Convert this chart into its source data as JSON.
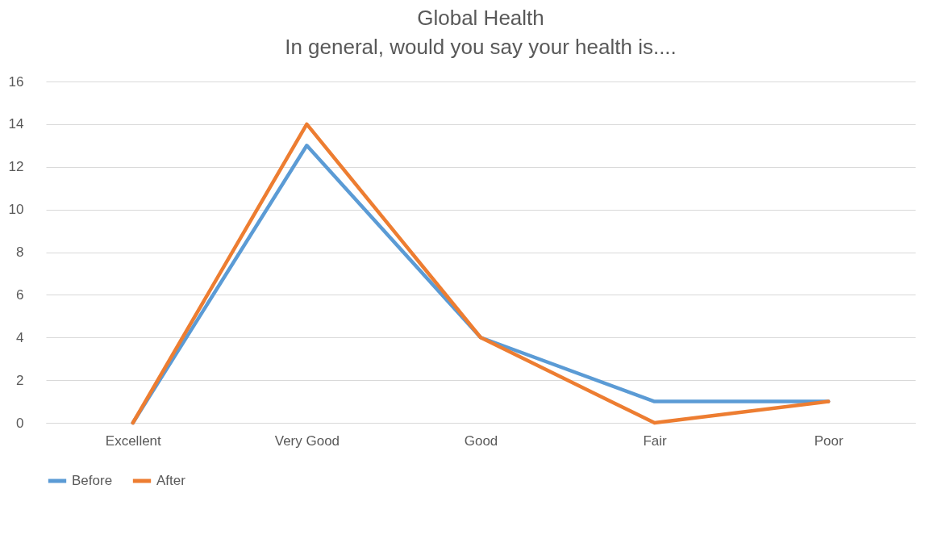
{
  "chart_data": {
    "type": "line",
    "title": "Global Health",
    "subtitle": "In general, would you say your health is....",
    "categories": [
      "Excellent",
      "Very Good",
      "Good",
      "Fair",
      "Poor"
    ],
    "series": [
      {
        "name": "Before",
        "color": "#5b9bd5",
        "values": [
          0,
          13,
          4,
          1,
          1
        ]
      },
      {
        "name": "After",
        "color": "#ed7d31",
        "values": [
          0,
          14,
          4,
          0,
          1
        ]
      }
    ],
    "ylim": [
      0,
      16
    ],
    "yticks": [
      0,
      2,
      4,
      6,
      8,
      10,
      12,
      14,
      16
    ],
    "grid": "y",
    "legend": "bottom",
    "marker": "none",
    "line_style": "solid"
  }
}
